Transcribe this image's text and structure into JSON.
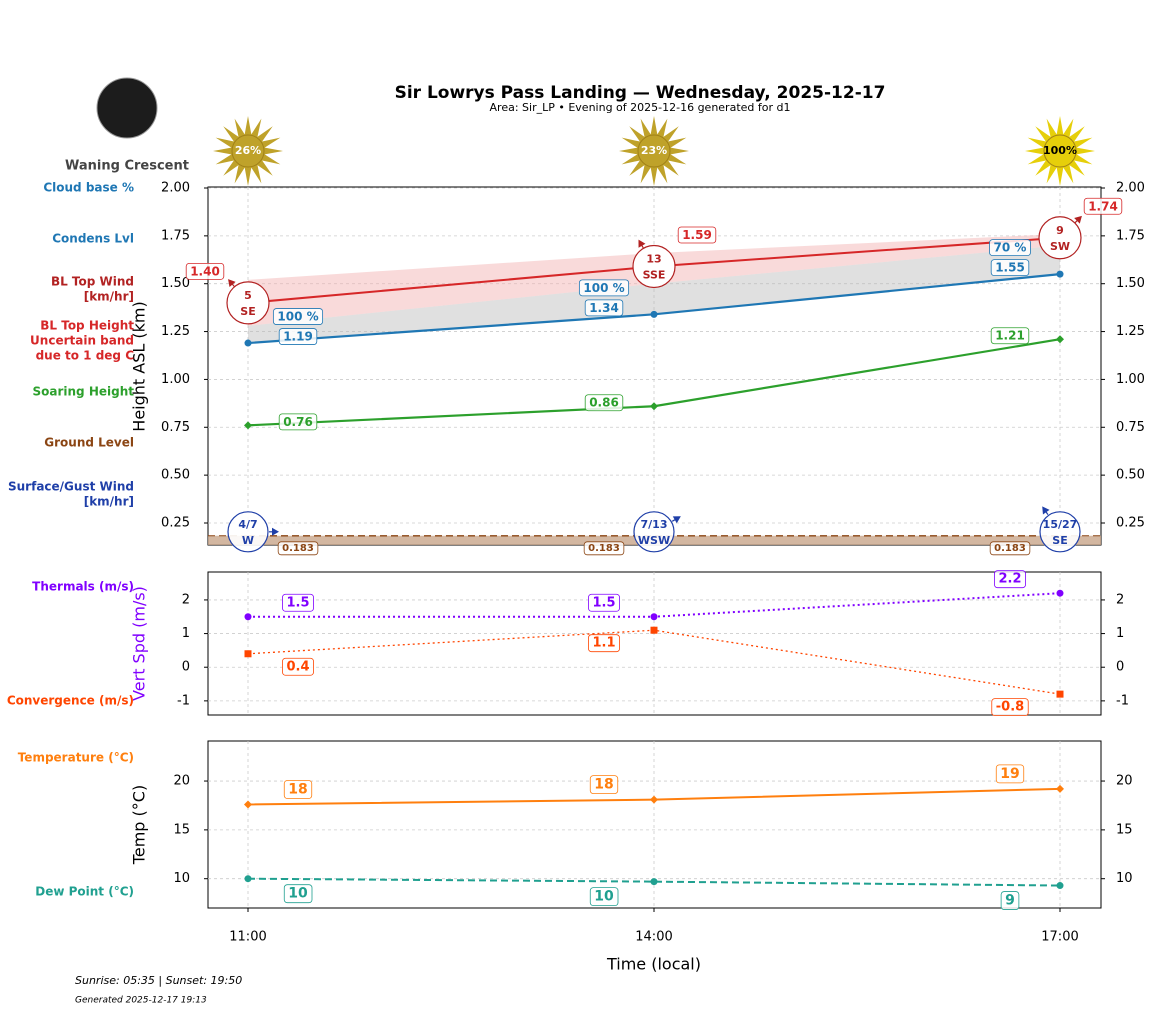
{
  "header": {
    "title": "Sir Lowrys Pass Landing — Wednesday, 2025-12-17",
    "subtitle": "Area: Sir_LP • Evening of 2025-12-16 generated for d1",
    "moon_phase": "Waning Crescent"
  },
  "sun": {
    "values": [
      26,
      23,
      100
    ],
    "value_labels": [
      "26%",
      "23%",
      "100%"
    ],
    "colors": [
      "#bfa22a",
      "#bfa22a",
      "#e6cf0a"
    ]
  },
  "x_axis": {
    "categories": [
      "11:00",
      "14:00",
      "17:00"
    ],
    "label": "Time (local)"
  },
  "chart_data": [
    {
      "type": "line",
      "ylabel": "Height ASL (km)",
      "ylabel_color": "#000000",
      "ylim": [
        0.135,
        2.0
      ],
      "grid": true,
      "yticks": [
        {
          "value": 0.25,
          "label": "0.25"
        },
        {
          "value": 0.5,
          "label": "0.50"
        },
        {
          "value": 0.75,
          "label": "0.75"
        },
        {
          "value": 1.0,
          "label": "1.00"
        },
        {
          "value": 1.25,
          "label": "1.25"
        },
        {
          "value": 1.5,
          "label": "1.50"
        },
        {
          "value": 1.75,
          "label": "1.75"
        },
        {
          "value": 2.0,
          "label": "2.00"
        }
      ],
      "series": [
        {
          "name": [
            "Cloud base %"
          ],
          "color": "#1f77b4",
          "values": [
            100,
            100,
            70
          ],
          "value_labels": [
            "100 %",
            "100 %",
            "70 %"
          ]
        },
        {
          "name": [
            "Condens Lvl"
          ],
          "color": "#1f77b4",
          "values": [
            1.19,
            1.34,
            1.55
          ],
          "linestyle": "solid",
          "marker": "circle"
        },
        {
          "name": [
            "BL Top Wind",
            "[km/hr]"
          ],
          "color": "#b22222",
          "values": [
            5,
            13,
            9
          ],
          "directions": [
            "SE",
            "SSE",
            "SW"
          ]
        },
        {
          "name": [
            "BL Top Height",
            "Uncertain band",
            "due to 1 deg C"
          ],
          "color": "#d62728",
          "values": [
            1.4,
            1.59,
            1.74
          ],
          "value_labels": [
            "1.40",
            "1.59",
            "1.74"
          ],
          "band_low": [
            1.28,
            1.5,
            1.7
          ],
          "band_high": [
            1.52,
            1.66,
            1.76
          ],
          "linestyle": "solid"
        },
        {
          "name": [
            "Soaring Height"
          ],
          "color": "#2ca02c",
          "values": [
            0.76,
            0.86,
            1.21
          ],
          "linestyle": "solid",
          "marker": "diamond"
        },
        {
          "name": [
            "Ground Level"
          ],
          "color": "#8b4513",
          "values": [
            0.183,
            0.183,
            0.183
          ],
          "linestyle": "dashed"
        },
        {
          "name": [
            "Surface/Gust Wind",
            "[km/hr]"
          ],
          "color": "#1f3fa8",
          "labels": [
            "4/7",
            "7/13",
            "15/27"
          ],
          "directions": [
            "W",
            "WSW",
            "SE"
          ]
        }
      ]
    },
    {
      "type": "line",
      "ylabel": "Vert Spd (m/s)",
      "ylabel_color": "#8000ff",
      "ylim": [
        -1.42,
        2.83
      ],
      "grid": true,
      "yticks": [
        -1,
        0,
        1,
        2
      ],
      "series": [
        {
          "name": [
            "Thermals (m/s)"
          ],
          "color": "#8000ff",
          "values": [
            1.5,
            1.5,
            2.2
          ],
          "linestyle": "dotted",
          "marker": "circle"
        },
        {
          "name": [
            "Convergence (m/s)"
          ],
          "color": "#ff4500",
          "values": [
            0.4,
            1.1,
            -0.8
          ],
          "linestyle": "dotted",
          "marker": "square"
        }
      ]
    },
    {
      "type": "line",
      "ylabel": "Temp (°C)",
      "ylabel_color": "#000000",
      "ylim": [
        7.0,
        24.1
      ],
      "grid": true,
      "yticks": [
        10,
        15,
        20
      ],
      "series": [
        {
          "name": [
            "Temperature (°C)"
          ],
          "color": "#ff7f0e",
          "values": [
            17.6,
            18.1,
            19.2
          ],
          "value_labels": [
            "18",
            "18",
            "19"
          ],
          "linestyle": "solid",
          "marker": "diamond"
        },
        {
          "name": [
            "Dew Point (°C)"
          ],
          "color": "#20a090",
          "values": [
            10.0,
            9.7,
            9.3
          ],
          "value_labels": [
            "10",
            "10",
            "9"
          ],
          "linestyle": "dashed",
          "marker": "circle"
        }
      ]
    }
  ],
  "footer": {
    "sun_times": "Sunrise: 05:35 | Sunset: 19:50",
    "generated": "Generated 2025-12-17 19:13"
  }
}
